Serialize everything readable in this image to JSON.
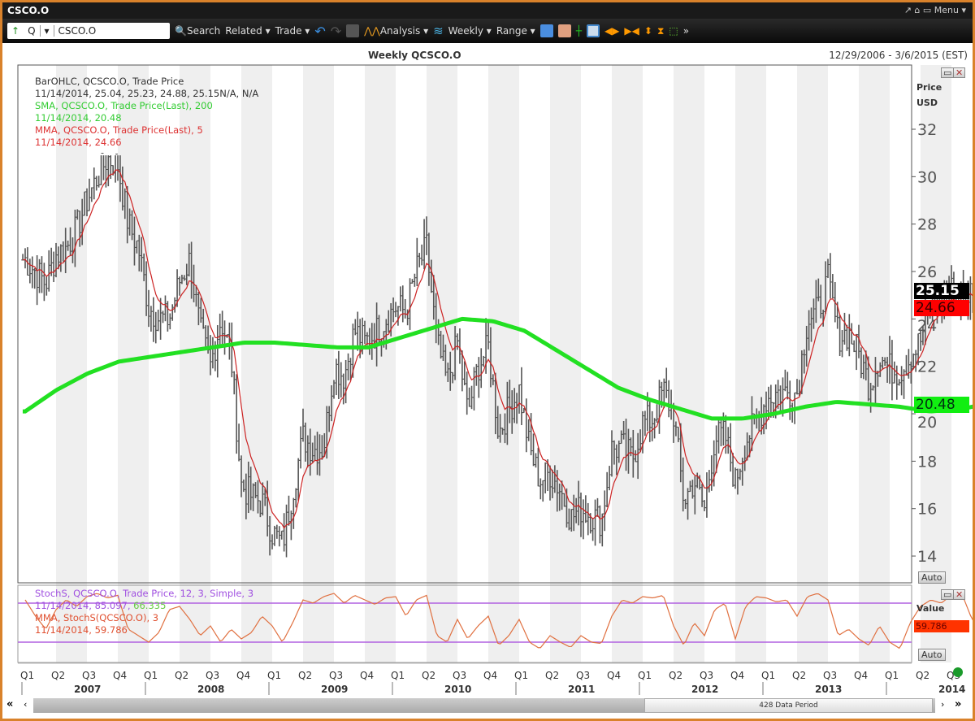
{
  "window": {
    "title": "CSCO.O",
    "controls": "↗ ⌂ ▭ Menu ▾"
  },
  "toolbar": {
    "ric_prefix": "Q",
    "ric_value": "CSCO.O",
    "search": "Search",
    "related": "Related ▾",
    "trade": "Trade ▾",
    "analysis": "Analysis ▾",
    "interval": "Weekly ▾",
    "range": "Range ▾"
  },
  "chart": {
    "title": "Weekly QCSCO.O",
    "date_range": "12/29/2006 - 3/6/2015 (EST)",
    "axis_title": "Price",
    "axis_unit": "USD",
    "value_title": "Value",
    "auto": "Auto",
    "data_period": "428 Data Period"
  },
  "legend": {
    "ohlc_name": "BarOHLC, QCSCO.O, Trade Price",
    "ohlc_values": "11/14/2014, 25.04, 25.23, 24.88, 25.15N/A, N/A",
    "sma_name": "SMA, QCSCO.O, Trade Price(Last),  200",
    "sma_values": "11/14/2014, 20.48",
    "mma_name": "MMA, QCSCO.O, Trade Price(Last),  5",
    "mma_values": "11/14/2014, 24.66",
    "stoch_name": "StochS, QCSCO.O, Trade Price,  12, 3, Simple, 3",
    "stoch_values_date": "11/14/2014, 85.097, ",
    "stoch_values_d": "66.335",
    "stoch_mma_name": "MMA, StochS(QCSCO.O),  3",
    "stoch_mma_values": "11/14/2014, 59.786"
  },
  "tags": {
    "last": "25.15",
    "mma": "24.66",
    "sma": "20.48",
    "stoch_mma": "59.786"
  },
  "colors": {
    "ohlc": "#555555",
    "sma": "#22e022",
    "mma": "#cc2222",
    "stoch": "#e07040",
    "stoch_bands": "#b060e0"
  },
  "chart_data": {
    "type": "ohlc",
    "y_ticks": [
      14,
      16,
      18,
      20,
      22,
      24,
      26,
      28,
      30,
      32
    ],
    "ylim": [
      13,
      34
    ],
    "x_quarters": [
      "Q1",
      "Q2",
      "Q3",
      "Q4"
    ],
    "years": [
      "2007",
      "2008",
      "2009",
      "2010",
      "2011",
      "2012",
      "2013",
      "2014"
    ],
    "monthly_close": {
      "start": "2007-01",
      "values": [
        26.5,
        26,
        25.5,
        26.7,
        27,
        27.8,
        29,
        30,
        30.8,
        30.5,
        28,
        27,
        24.5,
        24,
        24,
        25.6,
        26.5,
        23.5,
        22,
        24,
        22.5,
        17,
        16.5,
        16.3,
        15,
        14.5,
        16.8,
        19,
        18.5,
        18.6,
        22,
        21.6,
        23.5,
        23,
        23.4,
        24,
        24.5,
        24.3,
        26,
        27,
        23,
        21.3,
        23,
        20,
        22,
        22.8,
        19.2,
        20.2,
        21,
        18.5,
        17.2,
        17.5,
        16.8,
        15.6,
        16,
        15.7,
        15.5,
        18.5,
        18.6,
        18.1,
        19.6,
        19.8,
        21,
        20,
        16.3,
        17.2,
        16,
        19,
        19.1,
        17.1,
        18.9,
        19.6,
        20.6,
        20.9,
        20.9,
        20.9,
        24,
        24.3,
        25.6,
        23.3,
        23.4,
        22.5,
        21.2,
        22.4,
        21.9,
        21.8,
        22.4,
        23.1,
        24.6,
        24.8,
        25.2,
        25,
        25.2,
        24.5,
        25.15
      ]
    },
    "sma200_quarterly": [
      20.1,
      21,
      21.7,
      22.2,
      22.4,
      22.6,
      22.8,
      23,
      23,
      22.9,
      22.8,
      22.8,
      23.2,
      23.6,
      24,
      23.9,
      23.5,
      22.7,
      21.9,
      21.1,
      20.6,
      20.2,
      19.8,
      19.8,
      20,
      20.3,
      20.5,
      20.4,
      20.3,
      20.1,
      20.2,
      20.48
    ],
    "stoch_bands": [
      20,
      80
    ],
    "stoch_monthly": [
      85,
      60,
      40,
      70,
      85,
      75,
      90,
      95,
      88,
      92,
      40,
      30,
      20,
      35,
      70,
      75,
      55,
      30,
      45,
      20,
      40,
      25,
      35,
      60,
      45,
      20,
      50,
      85,
      80,
      90,
      95,
      80,
      92,
      85,
      78,
      88,
      90,
      60,
      85,
      92,
      30,
      20,
      55,
      25,
      45,
      60,
      15,
      30,
      55,
      20,
      10,
      30,
      20,
      12,
      30,
      20,
      18,
      60,
      85,
      80,
      90,
      88,
      92,
      45,
      15,
      50,
      30,
      70,
      80,
      25,
      75,
      90,
      88,
      82,
      85,
      60,
      90,
      95,
      85,
      30,
      40,
      25,
      15,
      45,
      20,
      10,
      50,
      75,
      85,
      80,
      92,
      95,
      55,
      45,
      59.786
    ]
  }
}
